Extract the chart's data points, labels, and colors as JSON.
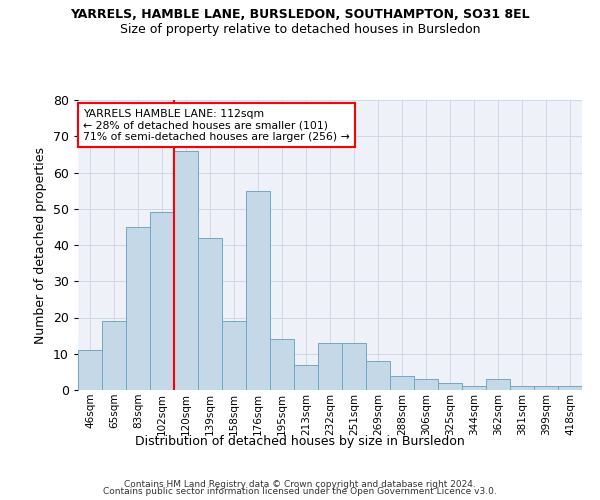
{
  "title": "YARRELS, HAMBLE LANE, BURSLEDON, SOUTHAMPTON, SO31 8EL",
  "subtitle": "Size of property relative to detached houses in Bursledon",
  "xlabel": "Distribution of detached houses by size in Bursledon",
  "ylabel": "Number of detached properties",
  "categories": [
    "46sqm",
    "65sqm",
    "83sqm",
    "102sqm",
    "120sqm",
    "139sqm",
    "158sqm",
    "176sqm",
    "195sqm",
    "213sqm",
    "232sqm",
    "251sqm",
    "269sqm",
    "288sqm",
    "306sqm",
    "325sqm",
    "344sqm",
    "362sqm",
    "381sqm",
    "399sqm",
    "418sqm"
  ],
  "values": [
    11,
    19,
    45,
    49,
    66,
    42,
    19,
    55,
    14,
    7,
    13,
    13,
    8,
    4,
    3,
    2,
    1,
    3,
    1,
    1,
    1
  ],
  "bar_color": "#c5d8e8",
  "bar_edge_color": "#6fa8c8",
  "vline_x_index": 3.5,
  "vline_color": "red",
  "annotation_text": "YARRELS HAMBLE LANE: 112sqm\n← 28% of detached houses are smaller (101)\n71% of semi-detached houses are larger (256) →",
  "annotation_box_color": "white",
  "annotation_box_edge_color": "red",
  "ylim": [
    0,
    80
  ],
  "yticks": [
    0,
    10,
    20,
    30,
    40,
    50,
    60,
    70,
    80
  ],
  "grid_color": "#d0d8e8",
  "bg_color": "#eef2f8",
  "footer_line1": "Contains HM Land Registry data © Crown copyright and database right 2024.",
  "footer_line2": "Contains public sector information licensed under the Open Government Licence v3.0."
}
